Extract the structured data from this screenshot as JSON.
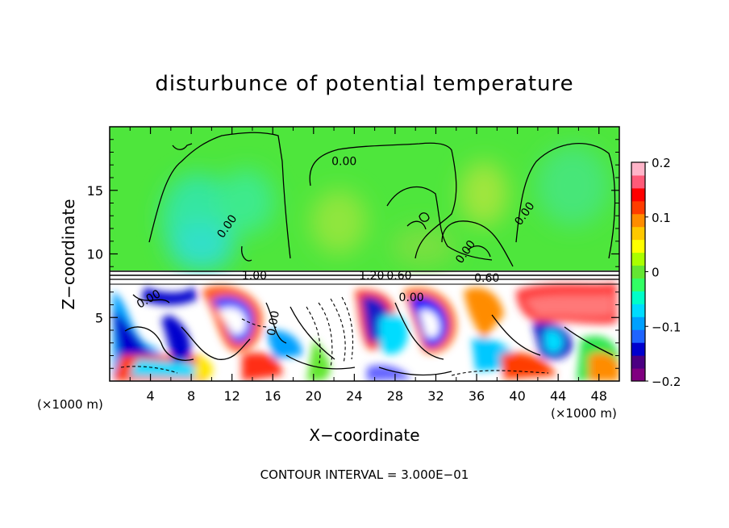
{
  "chart_data": {
    "type": "heatmap",
    "title": "disturbunce of potential temperature",
    "xlabel": "X−coordinate",
    "ylabel": "Z−coordinate",
    "x_unit": "(×1000 m)",
    "x_unit_right": "(×1000 m)",
    "xlim": [
      0,
      50
    ],
    "ylim": [
      0,
      20
    ],
    "xticks": [
      "4",
      "8",
      "12",
      "16",
      "20",
      "24",
      "28",
      "32",
      "36",
      "40",
      "44",
      "48"
    ],
    "yticks": [
      "5",
      "10",
      "15"
    ],
    "colorbar": {
      "range": [
        -0.2,
        0.2
      ],
      "tick_labels": [
        "0.2",
        "0.1",
        "0",
        "−0.1",
        "−0.2"
      ],
      "tick_values": [
        0.2,
        0.1,
        0,
        -0.1,
        -0.2
      ],
      "colors": [
        "#800080",
        "#4b0082",
        "#0000cd",
        "#1e64ff",
        "#00a0ff",
        "#00dcff",
        "#00ffc8",
        "#32ff64",
        "#64e632",
        "#aaff00",
        "#ffff00",
        "#ffc800",
        "#ff8c00",
        "#ff3c00",
        "#ff0000",
        "#ff5a78",
        "#ffb4c8"
      ]
    },
    "contour_labels": [
      {
        "text": "0.00",
        "x": 11.8,
        "z": 12.0
      },
      {
        "text": "0.00",
        "x": 23.0,
        "z": 17.0
      },
      {
        "text": "0.00",
        "x": 35.2,
        "z": 10.0
      },
      {
        "text": "0.00",
        "x": 41.0,
        "z": 13.0
      },
      {
        "text": "0.00",
        "x": 4.0,
        "z": 6.2
      },
      {
        "text": "0.00",
        "x": 29.6,
        "z": 6.3
      },
      {
        "text": "0.00",
        "x": 16.4,
        "z": 4.5
      },
      {
        "text": "1.00",
        "x": 14.2,
        "z": 8.0
      },
      {
        "text": "1.20",
        "x": 25.7,
        "z": 8.0
      },
      {
        "text": "0.60",
        "x": 28.4,
        "z": 8.0
      },
      {
        "text": "0.60",
        "x": 37.0,
        "z": 7.8
      }
    ],
    "footer": "CONTOUR INTERVAL = 3.000E−01"
  }
}
